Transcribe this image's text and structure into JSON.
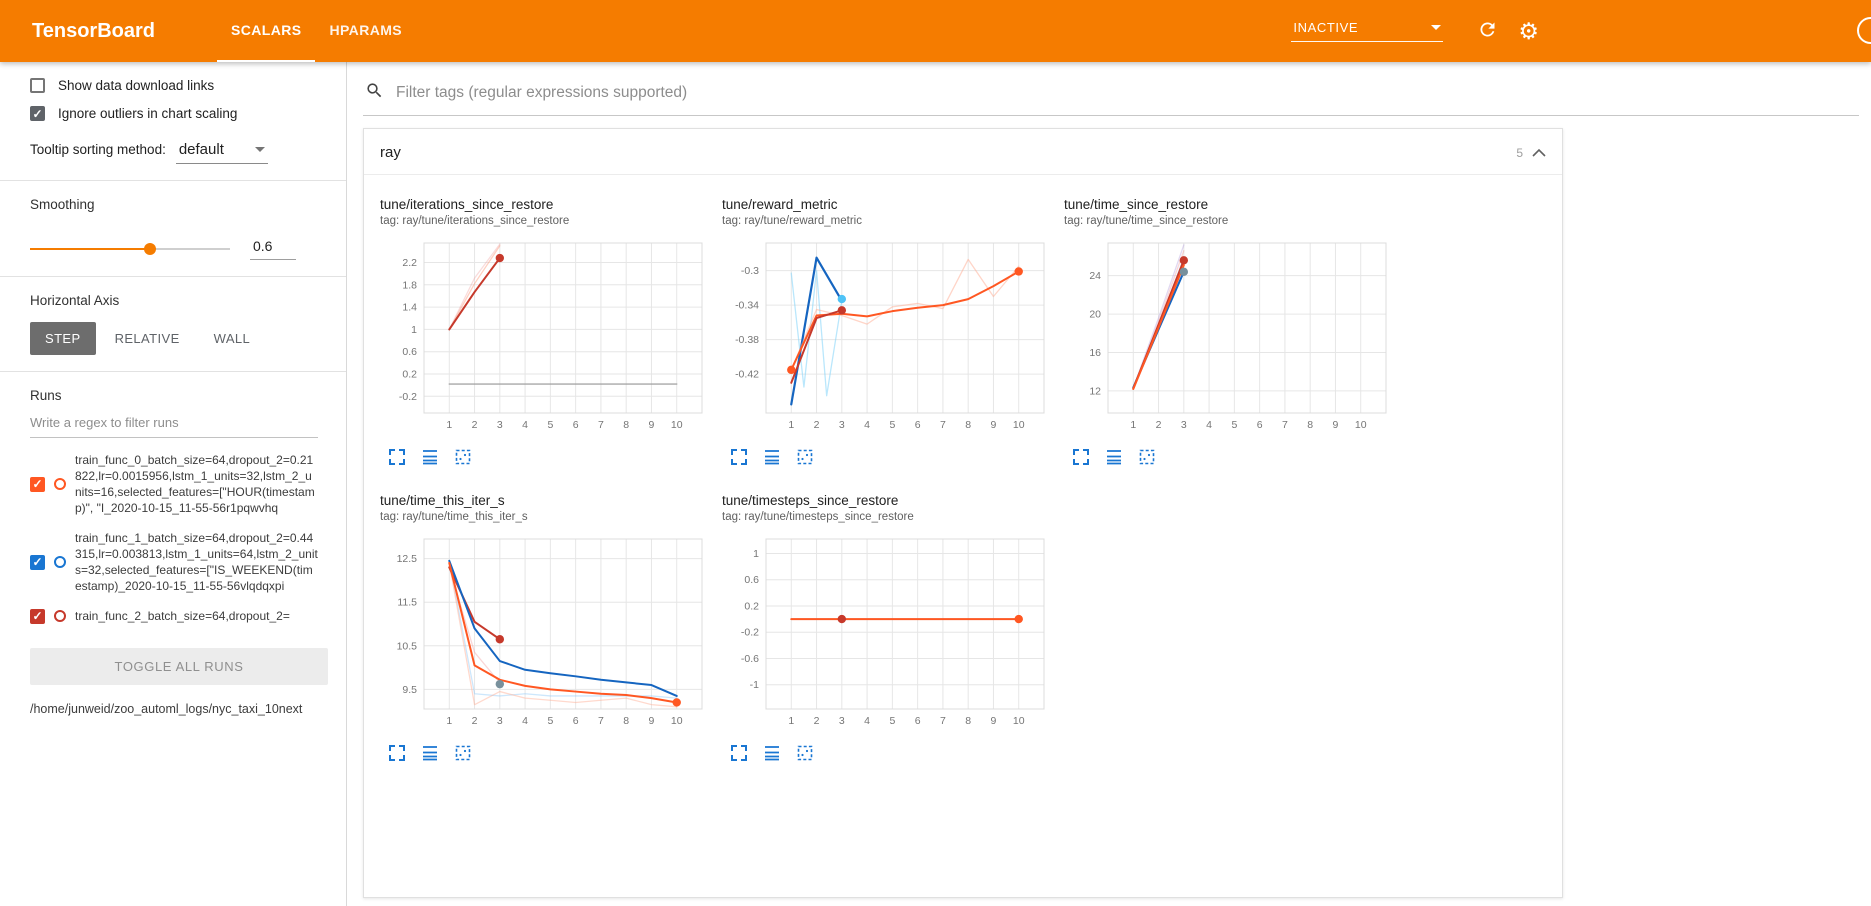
{
  "colors": {
    "accent": "#f57c00",
    "icon_blue": "#1976d2"
  },
  "header": {
    "title": "TensorBoard",
    "tabs": [
      {
        "label": "SCALARS",
        "active": true
      },
      {
        "label": "HPARAMS",
        "active": false
      }
    ],
    "status": "INACTIVE"
  },
  "sidebar": {
    "show_data_download_links": {
      "label": "Show data download links",
      "checked": false
    },
    "ignore_outliers": {
      "label": "Ignore outliers in chart scaling",
      "checked": true
    },
    "tooltip_sorting": {
      "label": "Tooltip sorting method:",
      "value": "default"
    },
    "smoothing": {
      "label": "Smoothing",
      "value": "0.6",
      "percent": 60
    },
    "horizontal_axis": {
      "label": "Horizontal Axis",
      "options": [
        "STEP",
        "RELATIVE",
        "WALL"
      ],
      "selected": "STEP"
    },
    "runs": {
      "label": "Runs",
      "filter_placeholder": "Write a regex to filter runs",
      "items": [
        {
          "name": "train_func_0_batch_size=64,dropout_2=0.21822,lr=0.0015956,lstm_1_units=32,lstm_2_units=16,selected_features=[\"HOUR(timestamp)\", \"I_2020-10-15_11-55-56r1pqwvhq",
          "color": "#ff5722",
          "checked": true
        },
        {
          "name": "train_func_1_batch_size=64,dropout_2=0.44315,lr=0.003813,lstm_1_units=64,lstm_2_units=32,selected_features=[\"IS_WEEKEND(timestamp)_2020-10-15_11-55-56vlqdqxpi",
          "color": "#1976d2",
          "checked": true
        },
        {
          "name": "train_func_2_batch_size=64,dropout_2=",
          "color": "#c6392b",
          "checked": true
        }
      ],
      "toggle_all_label": "TOGGLE ALL RUNS",
      "log_path": "/home/junweid/zoo_automl_logs/nyc_taxi_10next"
    }
  },
  "main": {
    "filter_placeholder": "Filter tags (regular expressions supported)",
    "section": {
      "name": "ray",
      "count": "5"
    }
  },
  "chart_data": [
    {
      "type": "line",
      "title": "tune/iterations_since_restore",
      "tag": "tag: ray/tune/iterations_since_restore",
      "xlabel": "",
      "ylabel": "",
      "xlim": [
        0,
        11
      ],
      "ylim": [
        -0.5,
        2.55
      ],
      "xticks": [
        1,
        2,
        3,
        4,
        5,
        6,
        7,
        8,
        9,
        10
      ],
      "yticks": [
        -0.2,
        0.2,
        0.6,
        1,
        1.4,
        1.8,
        2.2
      ],
      "ytick_labels": [
        "-0.2",
        "0.2",
        "0.6",
        "1",
        "1.4",
        "1.8",
        "2.2"
      ],
      "series": [
        {
          "name": "run0-raw",
          "color": "#ff8a65",
          "opacity": 0.4,
          "width": 1.3,
          "points": [
            [
              1,
              1.0
            ],
            [
              2,
              1.82
            ],
            [
              3,
              2.5
            ]
          ]
        },
        {
          "name": "run2-raw",
          "color": "#ef9a9a",
          "opacity": 0.35,
          "width": 1.3,
          "points": [
            [
              1,
              1.0
            ],
            [
              2,
              1.92
            ],
            [
              3,
              2.53
            ]
          ]
        },
        {
          "name": "run2-smoothed",
          "color": "#c6392b",
          "opacity": 1,
          "width": 2,
          "points": [
            [
              1,
              1.0
            ],
            [
              2,
              1.67
            ],
            [
              3,
              2.28
            ]
          ]
        },
        {
          "name": "constant-run",
          "color": "#9e9e9e",
          "opacity": 0.9,
          "width": 1.4,
          "points": [
            [
              1,
              0.02
            ],
            [
              10,
              0.02
            ]
          ]
        }
      ],
      "markers": [
        {
          "x": 3,
          "y": 2.28,
          "color": "#c6392b"
        }
      ]
    },
    {
      "type": "line",
      "title": "tune/reward_metric",
      "tag": "tag: ray/tune/reward_metric",
      "xlabel": "",
      "ylabel": "",
      "xlim": [
        0,
        11
      ],
      "ylim": [
        -0.465,
        -0.268
      ],
      "xticks": [
        1,
        2,
        3,
        4,
        5,
        6,
        7,
        8,
        9,
        10
      ],
      "yticks": [
        -0.42,
        -0.38,
        -0.34,
        -0.3
      ],
      "ytick_labels": [
        "-0.42",
        "-0.38",
        "-0.34",
        "-0.3"
      ],
      "series": [
        {
          "name": "run1-raw",
          "color": "#81d4fa",
          "opacity": 0.55,
          "width": 1.3,
          "points": [
            [
              1,
              -0.303
            ],
            [
              1.5,
              -0.435
            ],
            [
              2,
              -0.3
            ],
            [
              2.4,
              -0.445
            ],
            [
              3,
              -0.335
            ]
          ]
        },
        {
          "name": "run1-smoothed",
          "color": "#1565c0",
          "opacity": 1,
          "width": 2.2,
          "points": [
            [
              1,
              -0.455
            ],
            [
              2,
              -0.285
            ],
            [
              3,
              -0.335
            ]
          ]
        },
        {
          "name": "run0-raw",
          "color": "#ffab91",
          "opacity": 0.5,
          "width": 1.3,
          "points": [
            [
              1,
              -0.415
            ],
            [
              2,
              -0.345
            ],
            [
              3,
              -0.352
            ],
            [
              4,
              -0.362
            ],
            [
              5,
              -0.342
            ],
            [
              6,
              -0.338
            ],
            [
              7,
              -0.344
            ],
            [
              8,
              -0.287
            ],
            [
              9,
              -0.33
            ],
            [
              10,
              -0.295
            ]
          ]
        },
        {
          "name": "run0-smoothed",
          "color": "#ff5722",
          "opacity": 1,
          "width": 2,
          "points": [
            [
              1,
              -0.415
            ],
            [
              2,
              -0.352
            ],
            [
              3,
              -0.35
            ],
            [
              4,
              -0.353
            ],
            [
              5,
              -0.347
            ],
            [
              6,
              -0.343
            ],
            [
              7,
              -0.34
            ],
            [
              8,
              -0.333
            ],
            [
              9,
              -0.318
            ],
            [
              10,
              -0.301
            ]
          ]
        },
        {
          "name": "run2-smoothed",
          "color": "#c6392b",
          "opacity": 1,
          "width": 2,
          "points": [
            [
              1,
              -0.43
            ],
            [
              2,
              -0.355
            ],
            [
              3,
              -0.346
            ]
          ]
        }
      ],
      "markers": [
        {
          "x": 1,
          "y": -0.415,
          "color": "#ff5722"
        },
        {
          "x": 10,
          "y": -0.301,
          "color": "#ff5722"
        },
        {
          "x": 3,
          "y": -0.333,
          "color": "#4fc3f7"
        },
        {
          "x": 3,
          "y": -0.346,
          "color": "#c6392b"
        }
      ]
    },
    {
      "type": "line",
      "title": "tune/time_since_restore",
      "tag": "tag: ray/tune/time_since_restore",
      "xlabel": "",
      "ylabel": "",
      "xlim": [
        0,
        11
      ],
      "ylim": [
        9.7,
        27.4
      ],
      "xticks": [
        1,
        2,
        3,
        4,
        5,
        6,
        7,
        8,
        9,
        10
      ],
      "yticks": [
        12,
        16,
        20,
        24
      ],
      "ytick_labels": [
        "12",
        "16",
        "20",
        "24"
      ],
      "series": [
        {
          "name": "raw-a",
          "color": "#b39ddb",
          "opacity": 0.4,
          "width": 1.3,
          "points": [
            [
              1,
              12.3
            ],
            [
              2,
              19.6
            ],
            [
              3,
              27.2
            ]
          ]
        },
        {
          "name": "raw-b",
          "color": "#ef9a9a",
          "opacity": 0.4,
          "width": 1.3,
          "points": [
            [
              1,
              12.2
            ],
            [
              2,
              19.2
            ],
            [
              3,
              26.6
            ]
          ]
        },
        {
          "name": "raw-c",
          "color": "#90caf9",
          "opacity": 0.4,
          "width": 1.3,
          "points": [
            [
              1,
              12.4
            ],
            [
              2,
              18.8
            ],
            [
              3,
              25.9
            ]
          ]
        },
        {
          "name": "run1-smoothed",
          "color": "#1565c0",
          "opacity": 1,
          "width": 2,
          "points": [
            [
              1,
              12.35
            ],
            [
              2,
              18.4
            ],
            [
              3,
              24.4
            ]
          ]
        },
        {
          "name": "run2-smoothed",
          "color": "#c6392b",
          "opacity": 1,
          "width": 2,
          "points": [
            [
              1,
              12.25
            ],
            [
              2,
              18.9
            ],
            [
              3,
              25.6
            ]
          ]
        },
        {
          "name": "run0-smoothed",
          "color": "#ff5722",
          "opacity": 1,
          "width": 2,
          "points": [
            [
              1,
              12.2
            ],
            [
              2,
              18.6
            ],
            [
              3,
              25.1
            ]
          ]
        }
      ],
      "markers": [
        {
          "x": 3,
          "y": 25.6,
          "color": "#c6392b"
        },
        {
          "x": 3,
          "y": 24.4,
          "color": "#78909c"
        }
      ]
    },
    {
      "type": "line",
      "title": "tune/time_this_iter_s",
      "tag": "tag: ray/tune/time_this_iter_s",
      "xlabel": "",
      "ylabel": "",
      "xlim": [
        0,
        11
      ],
      "ylim": [
        9.05,
        12.95
      ],
      "xticks": [
        1,
        2,
        3,
        4,
        5,
        6,
        7,
        8,
        9,
        10
      ],
      "yticks": [
        9.5,
        10.5,
        11.5,
        12.5
      ],
      "ytick_labels": [
        "9.5",
        "10.5",
        "11.5",
        "12.5"
      ],
      "series": [
        {
          "name": "run1-raw",
          "color": "#90caf9",
          "opacity": 0.45,
          "width": 1.3,
          "points": [
            [
              1,
              12.45
            ],
            [
              2,
              9.4
            ],
            [
              3,
              9.35
            ],
            [
              4,
              9.4
            ],
            [
              5,
              9.35
            ],
            [
              6,
              9.35
            ],
            [
              7,
              9.35
            ],
            [
              8,
              9.35
            ],
            [
              9,
              9.35
            ],
            [
              10,
              9.3
            ]
          ]
        },
        {
          "name": "run0-raw",
          "color": "#ffab91",
          "opacity": 0.45,
          "width": 1.3,
          "points": [
            [
              1,
              12.4
            ],
            [
              2,
              9.15
            ],
            [
              3,
              9.45
            ],
            [
              4,
              9.3
            ],
            [
              5,
              9.25
            ],
            [
              6,
              9.2
            ],
            [
              7,
              9.25
            ],
            [
              8,
              9.3
            ],
            [
              9,
              9.15
            ],
            [
              10,
              9.1
            ]
          ]
        },
        {
          "name": "run2-raw",
          "color": "#ef9a9a",
          "opacity": 0.4,
          "width": 1.3,
          "points": [
            [
              1,
              12.3
            ],
            [
              2,
              10.35
            ],
            [
              3,
              9.65
            ]
          ]
        },
        {
          "name": "run2-smoothed",
          "color": "#c6392b",
          "opacity": 1,
          "width": 2,
          "points": [
            [
              1,
              12.3
            ],
            [
              2,
              11.05
            ],
            [
              3,
              10.65
            ]
          ]
        },
        {
          "name": "run1-smoothed",
          "color": "#1565c0",
          "opacity": 1,
          "width": 2,
          "points": [
            [
              1,
              12.45
            ],
            [
              2,
              10.9
            ],
            [
              3,
              10.15
            ],
            [
              4,
              9.95
            ],
            [
              5,
              9.87
            ],
            [
              6,
              9.8
            ],
            [
              7,
              9.72
            ],
            [
              8,
              9.66
            ],
            [
              9,
              9.6
            ],
            [
              10,
              9.35
            ]
          ]
        },
        {
          "name": "run0-smoothed",
          "color": "#ff5722",
          "opacity": 1,
          "width": 2,
          "points": [
            [
              1,
              12.4
            ],
            [
              2,
              10.05
            ],
            [
              3,
              9.72
            ],
            [
              4,
              9.58
            ],
            [
              5,
              9.5
            ],
            [
              6,
              9.45
            ],
            [
              7,
              9.4
            ],
            [
              8,
              9.37
            ],
            [
              9,
              9.3
            ],
            [
              10,
              9.2
            ]
          ]
        }
      ],
      "markers": [
        {
          "x": 3,
          "y": 10.65,
          "color": "#c6392b"
        },
        {
          "x": 3,
          "y": 9.62,
          "color": "#78909c"
        },
        {
          "x": 10,
          "y": 9.2,
          "color": "#ff5722"
        }
      ]
    },
    {
      "type": "line",
      "title": "tune/timesteps_since_restore",
      "tag": "tag: ray/tune/timesteps_since_restore",
      "xlabel": "",
      "ylabel": "",
      "xlim": [
        0,
        11
      ],
      "ylim": [
        -1.37,
        1.22
      ],
      "xticks": [
        1,
        2,
        3,
        4,
        5,
        6,
        7,
        8,
        9,
        10
      ],
      "yticks": [
        -1,
        -0.6,
        -0.2,
        0.2,
        0.6,
        1
      ],
      "ytick_labels": [
        "-1",
        "-0.6",
        "-0.2",
        "0.2",
        "0.6",
        "1"
      ],
      "series": [
        {
          "name": "constant-gray",
          "color": "#9e9e9e",
          "opacity": 0.9,
          "width": 1.4,
          "points": [
            [
              1,
              0
            ],
            [
              10,
              0
            ]
          ]
        },
        {
          "name": "run0-smoothed",
          "color": "#ff5722",
          "opacity": 1,
          "width": 2,
          "points": [
            [
              1,
              0
            ],
            [
              10,
              0
            ]
          ]
        }
      ],
      "markers": [
        {
          "x": 3,
          "y": 0,
          "color": "#c6392b"
        },
        {
          "x": 10,
          "y": 0,
          "color": "#ff5722"
        }
      ]
    }
  ]
}
